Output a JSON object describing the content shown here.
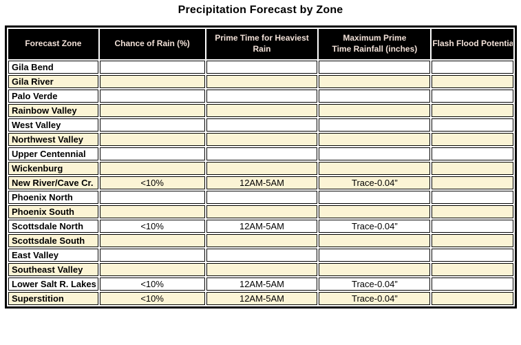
{
  "title": "Precipitation Forecast by Zone",
  "colors": {
    "header_bg": "#000000",
    "header_text": "#F2E1D8",
    "row_stripe": "#FBF4D5",
    "row_plain": "#FFFFFF",
    "border": "#000000"
  },
  "table": {
    "columns": [
      "Forecast Zone",
      "Chance of Rain (%)",
      "Prime Time for Heaviest Rain",
      "Maximum Prime\nTime Rainfall (inches)",
      "Flash Flood Potential"
    ],
    "rows": [
      {
        "zone": "Gila Bend",
        "chance_of_rain": "",
        "prime_time": "",
        "max_rainfall": "",
        "flash_flood": "",
        "shaded": false
      },
      {
        "zone": "Gila River",
        "chance_of_rain": "",
        "prime_time": "",
        "max_rainfall": "",
        "flash_flood": "",
        "shaded": true
      },
      {
        "zone": "Palo Verde",
        "chance_of_rain": "",
        "prime_time": "",
        "max_rainfall": "",
        "flash_flood": "",
        "shaded": false
      },
      {
        "zone": "Rainbow Valley",
        "chance_of_rain": "",
        "prime_time": "",
        "max_rainfall": "",
        "flash_flood": "",
        "shaded": true
      },
      {
        "zone": "West Valley",
        "chance_of_rain": "",
        "prime_time": "",
        "max_rainfall": "",
        "flash_flood": "",
        "shaded": false
      },
      {
        "zone": "Northwest Valley",
        "chance_of_rain": "",
        "prime_time": "",
        "max_rainfall": "",
        "flash_flood": "",
        "shaded": true
      },
      {
        "zone": "Upper Centennial",
        "chance_of_rain": "",
        "prime_time": "",
        "max_rainfall": "",
        "flash_flood": "",
        "shaded": false
      },
      {
        "zone": "Wickenburg",
        "chance_of_rain": "",
        "prime_time": "",
        "max_rainfall": "",
        "flash_flood": "",
        "shaded": true
      },
      {
        "zone": "New River/Cave Cr.",
        "chance_of_rain": "<10%",
        "prime_time": "12AM-5AM",
        "max_rainfall": "Trace-0.04”",
        "flash_flood": "",
        "shaded": true
      },
      {
        "zone": "Phoenix North",
        "chance_of_rain": "",
        "prime_time": "",
        "max_rainfall": "",
        "flash_flood": "",
        "shaded": false
      },
      {
        "zone": "Phoenix South",
        "chance_of_rain": "",
        "prime_time": "",
        "max_rainfall": "",
        "flash_flood": "",
        "shaded": true
      },
      {
        "zone": "Scottsdale North",
        "chance_of_rain": "<10%",
        "prime_time": "12AM-5AM",
        "max_rainfall": "Trace-0.04”",
        "flash_flood": "",
        "shaded": false
      },
      {
        "zone": "Scottsdale South",
        "chance_of_rain": "",
        "prime_time": "",
        "max_rainfall": "",
        "flash_flood": "",
        "shaded": true
      },
      {
        "zone": "East Valley",
        "chance_of_rain": "",
        "prime_time": "",
        "max_rainfall": "",
        "flash_flood": "",
        "shaded": false
      },
      {
        "zone": "Southeast Valley",
        "chance_of_rain": "",
        "prime_time": "",
        "max_rainfall": "",
        "flash_flood": "",
        "shaded": true
      },
      {
        "zone": "Lower Salt R. Lakes",
        "chance_of_rain": "<10%",
        "prime_time": "12AM-5AM",
        "max_rainfall": "Trace-0.04”",
        "flash_flood": "",
        "shaded": false
      },
      {
        "zone": "Superstition",
        "chance_of_rain": "<10%",
        "prime_time": "12AM-5AM",
        "max_rainfall": "Trace-0.04”",
        "flash_flood": "",
        "shaded": true
      }
    ]
  }
}
